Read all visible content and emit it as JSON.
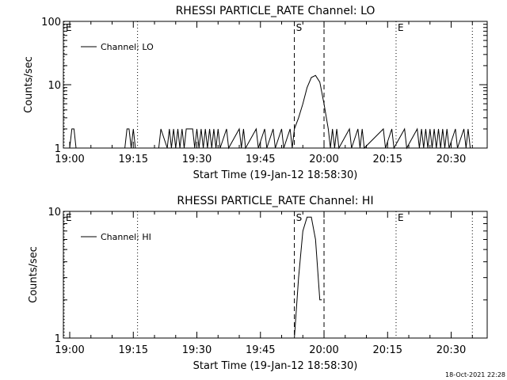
{
  "footer": {
    "timestamp": "18-Oct-2021 22:28"
  },
  "chart_data": [
    {
      "type": "line",
      "title": "RHESSI PARTICLE_RATE Channel: LO",
      "xlabel": "Start Time (19-Jan-12 18:58:30)",
      "ylabel": "Counts/sec",
      "yscale": "log",
      "ylim": [
        1,
        100
      ],
      "xlim": [
        "18:58:30",
        "20:38:30"
      ],
      "ytick_labels": [
        "1",
        "10",
        "100"
      ],
      "ytick_values": [
        1,
        10,
        100
      ],
      "xtick_labels": [
        "19:00",
        "19:15",
        "19:30",
        "19:45",
        "20:00",
        "20:15",
        "20:30"
      ],
      "xtick_values": [
        "19:00",
        "19:15",
        "19:30",
        "19:45",
        "20:00",
        "20:15",
        "20:30"
      ],
      "legend": "top-left",
      "series": [
        {
          "name": "Channel: LO",
          "x": [
            "19:00",
            "19:00:30",
            "19:01",
            "19:01:30",
            "19:13",
            "19:13:30",
            "19:14",
            "19:14:30",
            "19:15",
            "19:15:30",
            "19:21",
            "19:21:30",
            "19:23",
            "19:23:30",
            "19:24",
            "19:24:30",
            "19:25",
            "19:25:30",
            "19:26",
            "19:26:30",
            "19:27",
            "19:27:30",
            "19:29",
            "19:29:30",
            "19:30",
            "19:30:30",
            "19:31",
            "19:31:30",
            "19:32",
            "19:32:30",
            "19:33",
            "19:33:30",
            "19:34",
            "19:34:30",
            "19:35",
            "19:35:30",
            "19:37",
            "19:37:30",
            "19:40",
            "19:40:30",
            "19:41",
            "19:41:30",
            "19:44",
            "19:44:30",
            "19:46",
            "19:46:30",
            "19:48",
            "19:48:30",
            "19:50",
            "19:50:30",
            "19:52",
            "19:52:30",
            "19:53",
            "19:54",
            "19:55",
            "19:56",
            "19:57",
            "19:58",
            "19:59",
            "20:00",
            "20:01",
            "20:01:30",
            "20:02",
            "20:02:30",
            "20:03",
            "20:03:30",
            "20:06",
            "20:06:30",
            "20:08",
            "20:08:30",
            "20:09",
            "20:09:30",
            "20:14",
            "20:14:30",
            "20:16",
            "20:16:30",
            "20:19",
            "20:19:30",
            "20:22",
            "20:22:30",
            "20:23",
            "20:23:30",
            "20:24",
            "20:24:30",
            "20:25",
            "20:25:30",
            "20:26",
            "20:26:30",
            "20:27",
            "20:27:30",
            "20:28",
            "20:28:30",
            "20:29",
            "20:29:30",
            "20:31",
            "20:31:30",
            "20:33",
            "20:33:30",
            "20:34",
            "20:34:30"
          ],
          "y": [
            1,
            2,
            2,
            1,
            1,
            2,
            2,
            1,
            2,
            1,
            1,
            2,
            1,
            2,
            1,
            2,
            1,
            2,
            1,
            2,
            1,
            2,
            2,
            1,
            2,
            1,
            2,
            1,
            2,
            1,
            2,
            1,
            2,
            1,
            2,
            1,
            2,
            1,
            2,
            1,
            2,
            1,
            2,
            1,
            2,
            1,
            2,
            1,
            2,
            1,
            2,
            1,
            2,
            3,
            5,
            9,
            13,
            14,
            11,
            5,
            2,
            1,
            2,
            1,
            2,
            1,
            2,
            1,
            2,
            1,
            2,
            1,
            2,
            1,
            2,
            1,
            2,
            1,
            2,
            1,
            2,
            1,
            2,
            1,
            2,
            1,
            2,
            1,
            2,
            1,
            2,
            1,
            2,
            1,
            2,
            1,
            2,
            1,
            2,
            1
          ]
        }
      ],
      "annotations": [
        {
          "text": "E",
          "x": "18:58:30",
          "style": "dotted"
        },
        {
          "text": "",
          "x": "19:16",
          "style": "dotted"
        },
        {
          "text": "S",
          "x": "19:53",
          "style": "dashed"
        },
        {
          "text": "",
          "x": "20:00",
          "style": "dashed"
        },
        {
          "text": "E",
          "x": "20:17",
          "style": "dotted"
        },
        {
          "text": "",
          "x": "20:35",
          "style": "dotted"
        }
      ]
    },
    {
      "type": "line",
      "title": "RHESSI PARTICLE_RATE Channel: HI",
      "xlabel": "Start Time (19-Jan-12 18:58:30)",
      "ylabel": "Counts/sec",
      "yscale": "log",
      "ylim": [
        1,
        10
      ],
      "xlim": [
        "18:58:30",
        "20:38:30"
      ],
      "ytick_labels": [
        "1",
        "10"
      ],
      "ytick_values": [
        1,
        10
      ],
      "xtick_labels": [
        "19:00",
        "19:15",
        "19:30",
        "19:45",
        "20:00",
        "20:15",
        "20:30"
      ],
      "xtick_values": [
        "19:00",
        "19:15",
        "19:30",
        "19:45",
        "20:00",
        "20:15",
        "20:30"
      ],
      "legend": "top-left",
      "series": [
        {
          "name": "Channel: HI",
          "x": [
            "19:53",
            "19:54",
            "19:55",
            "19:56",
            "19:57",
            "19:58",
            "19:59",
            "19:59:30"
          ],
          "y": [
            1,
            3,
            7,
            9,
            9,
            6,
            2,
            2
          ]
        }
      ],
      "annotations": [
        {
          "text": "E",
          "x": "18:58:30",
          "style": "dotted"
        },
        {
          "text": "",
          "x": "19:16",
          "style": "dotted"
        },
        {
          "text": "S",
          "x": "19:53",
          "style": "dashed"
        },
        {
          "text": "",
          "x": "20:00",
          "style": "dashed"
        },
        {
          "text": "E",
          "x": "20:17",
          "style": "dotted"
        },
        {
          "text": "",
          "x": "20:35",
          "style": "dotted"
        }
      ]
    }
  ]
}
